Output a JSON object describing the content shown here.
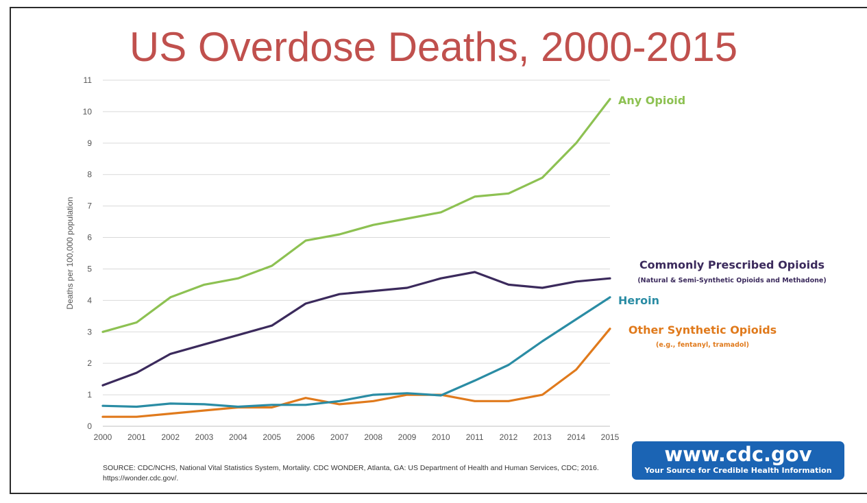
{
  "chart_data": {
    "type": "line",
    "title": "US Overdose Deaths, 2000-2015",
    "xlabel": "",
    "ylabel": "Deaths per 100,000 population",
    "x": [
      2000,
      2001,
      2002,
      2003,
      2004,
      2005,
      2006,
      2007,
      2008,
      2009,
      2010,
      2011,
      2012,
      2013,
      2014,
      2015
    ],
    "xlim": [
      2000,
      2015
    ],
    "ylim": [
      0,
      11
    ],
    "yticks": [
      0,
      1,
      2,
      3,
      4,
      5,
      6,
      7,
      8,
      9,
      10,
      11
    ],
    "grid": "horizontal",
    "legend": "direct labels at right of series ends",
    "series": [
      {
        "name": "Any Opioid",
        "color": "#8dc152",
        "values": [
          3.0,
          3.3,
          4.1,
          4.5,
          4.7,
          5.1,
          5.9,
          6.1,
          6.4,
          6.6,
          6.8,
          7.3,
          7.4,
          7.9,
          9.0,
          10.4
        ]
      },
      {
        "name": "Commonly Prescribed Opioids",
        "subtitle": "(Natural & Semi-Synthetic Opioids and Methadone)",
        "color": "#3b2a5c",
        "values": [
          1.3,
          1.7,
          2.3,
          2.6,
          2.9,
          3.2,
          3.9,
          4.2,
          4.3,
          4.4,
          4.7,
          4.9,
          4.5,
          4.4,
          4.6,
          4.7
        ]
      },
      {
        "name": "Heroin",
        "color": "#2a8ca4",
        "values": [
          0.65,
          0.62,
          0.72,
          0.7,
          0.62,
          0.68,
          0.68,
          0.8,
          1.0,
          1.05,
          0.98,
          1.45,
          1.95,
          2.7,
          3.4,
          4.1
        ]
      },
      {
        "name": "Other Synthetic Opioids",
        "subtitle": "(e.g., fentanyl, tramadol)",
        "color": "#e07a1c",
        "values": [
          0.3,
          0.3,
          0.4,
          0.5,
          0.6,
          0.6,
          0.9,
          0.7,
          0.8,
          1.0,
          1.0,
          0.8,
          0.8,
          1.0,
          1.8,
          3.1
        ]
      }
    ],
    "source": "SOURCE: CDC/NCHS, National Vital Statistics System, Mortality. CDC WONDER, Atlanta, GA: US Department of Health and Human Services, CDC; 2016. https://wonder.cdc.gov/."
  },
  "colors": {
    "title": "#c0504d",
    "axis_text": "#555555",
    "gridline": "#d9d9d9",
    "badge_bg": "#1b64b4"
  },
  "badge": {
    "url": "www.cdc.gov",
    "tagline": "Your Source for Credible Health Information"
  }
}
